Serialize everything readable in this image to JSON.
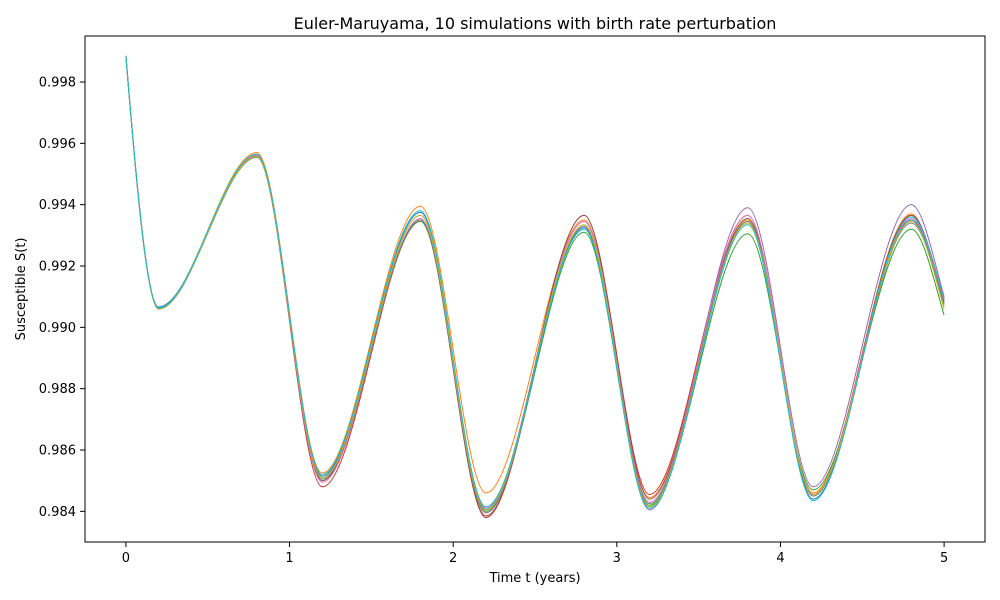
{
  "chart_data": {
    "type": "line",
    "title": "Euler-Maruyama, 10 simulations with birth rate perturbation",
    "xlabel": "Time t (years)",
    "ylabel": "Susceptible S(t)",
    "xlim": [
      -0.25,
      5.25
    ],
    "ylim": [
      0.983,
      0.9995
    ],
    "xticks": [
      0,
      1,
      2,
      3,
      4,
      5
    ],
    "xtick_labels": [
      "0",
      "1",
      "2",
      "3",
      "4",
      "5"
    ],
    "yticks": [
      0.984,
      0.986,
      0.988,
      0.99,
      0.992,
      0.994,
      0.996,
      0.998
    ],
    "ytick_labels": [
      "0.984",
      "0.986",
      "0.988",
      "0.990",
      "0.992",
      "0.994",
      "0.996",
      "0.998"
    ],
    "grid": false,
    "legend": "none",
    "x": [
      0,
      0.2,
      0.8,
      1.2,
      1.8,
      2.2,
      2.8,
      3.2,
      3.8,
      4.2,
      4.8,
      5.0
    ],
    "series": [
      {
        "color": "#1f77b4",
        "values": [
          0.99885,
          0.99066,
          0.9956,
          0.98515,
          0.99375,
          0.98405,
          0.99325,
          0.98415,
          0.99345,
          0.9844,
          0.9935,
          0.9908
        ]
      },
      {
        "color": "#ff7f0e",
        "values": [
          0.99885,
          0.99062,
          0.9957,
          0.98525,
          0.99395,
          0.9846,
          0.9935,
          0.98445,
          0.9935,
          0.9846,
          0.9937,
          0.9907
        ]
      },
      {
        "color": "#2ca02c",
        "values": [
          0.99885,
          0.9906,
          0.99555,
          0.98505,
          0.99345,
          0.984,
          0.9931,
          0.9842,
          0.99305,
          0.9847,
          0.9932,
          0.9904
        ]
      },
      {
        "color": "#d62728",
        "values": [
          0.99885,
          0.9906,
          0.9956,
          0.9848,
          0.9935,
          0.9838,
          0.99365,
          0.98455,
          0.99365,
          0.98455,
          0.99365,
          0.9909
        ]
      },
      {
        "color": "#9467bd",
        "values": [
          0.99885,
          0.99062,
          0.99562,
          0.9851,
          0.99365,
          0.9841,
          0.99345,
          0.98405,
          0.9939,
          0.9848,
          0.994,
          0.991
        ]
      },
      {
        "color": "#8c564b",
        "values": [
          0.99885,
          0.99061,
          0.9956,
          0.985,
          0.9935,
          0.98385,
          0.99365,
          0.9844,
          0.99355,
          0.9845,
          0.99365,
          0.99085
        ]
      },
      {
        "color": "#e377c2",
        "values": [
          0.99885,
          0.99061,
          0.99562,
          0.98495,
          0.99355,
          0.98395,
          0.99345,
          0.9843,
          0.99365,
          0.98455,
          0.99355,
          0.9909
        ]
      },
      {
        "color": "#7f7f7f",
        "values": [
          0.99885,
          0.9906,
          0.99555,
          0.98505,
          0.9935,
          0.98395,
          0.9933,
          0.98425,
          0.99345,
          0.9845,
          0.9934,
          0.99075
        ]
      },
      {
        "color": "#bcbd22",
        "values": [
          0.99885,
          0.99061,
          0.99558,
          0.9851,
          0.99365,
          0.98405,
          0.99335,
          0.98415,
          0.9934,
          0.98455,
          0.99345,
          0.9906
        ]
      },
      {
        "color": "#17becf",
        "values": [
          0.99885,
          0.99063,
          0.99565,
          0.9852,
          0.9938,
          0.98415,
          0.9932,
          0.9841,
          0.99335,
          0.98435,
          0.9936,
          0.99095
        ]
      }
    ]
  }
}
